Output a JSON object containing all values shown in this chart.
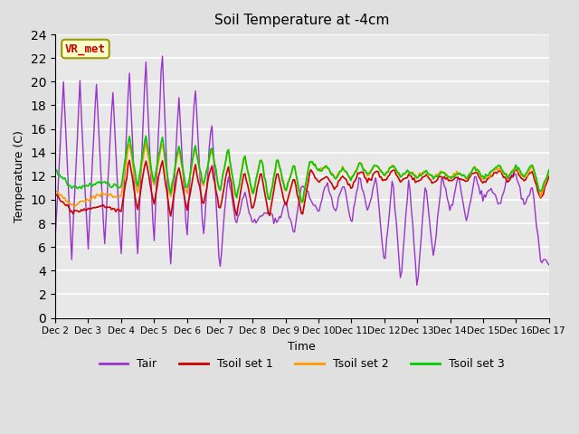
{
  "title": "Soil Temperature at -4cm",
  "xlabel": "Time",
  "ylabel": "Temperature (C)",
  "ylim": [
    0,
    24
  ],
  "yticks": [
    0,
    2,
    4,
    6,
    8,
    10,
    12,
    14,
    16,
    18,
    20,
    22,
    24
  ],
  "xtick_labels": [
    "Dec 2",
    "Dec 3",
    "Dec 4",
    "Dec 5",
    "Dec 6",
    "Dec 7",
    "Dec 8",
    "Dec 9",
    "Dec 10",
    "Dec 11",
    "Dec 12",
    "Dec 13",
    "Dec 14",
    "Dec 15",
    "Dec 16",
    "Dec 17"
  ],
  "bg_color": "#e8e8e8",
  "plot_bg_color": "#e8e8e8",
  "line_colors": {
    "Tair": "#9933cc",
    "Tsoil_set1": "#cc0000",
    "Tsoil_set2": "#ff9900",
    "Tsoil_set3": "#00cc00"
  },
  "legend_labels": [
    "Tair",
    "Tsoil set 1",
    "Tsoil set 2",
    "Tsoil set 3"
  ],
  "annotation_text": "VR_met",
  "annotation_color": "#cc0000",
  "annotation_bg": "#ffffcc",
  "annotation_border": "#999900"
}
